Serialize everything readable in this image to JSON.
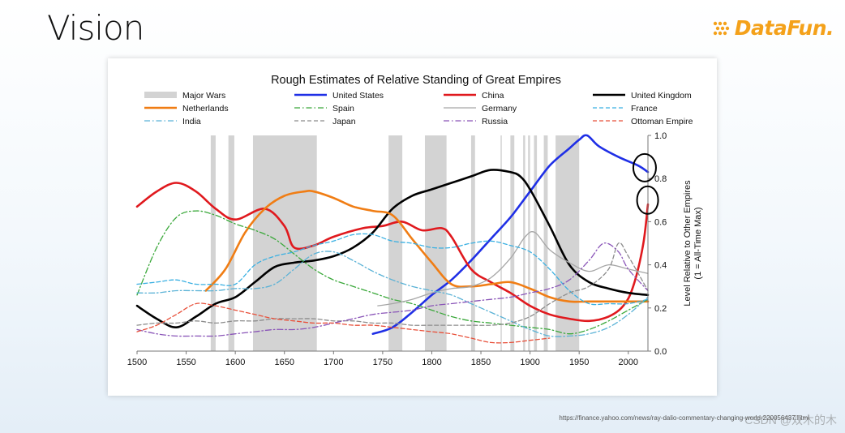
{
  "slide": {
    "title": "Vision",
    "source_url": "https://finance.yahoo.com/news/ray-dalio-commentary-changing-world-220056437.html",
    "watermark": "CSDN @双木的木"
  },
  "logo": {
    "text": "DataFun.",
    "color": "#f4a11a"
  },
  "chart_data": {
    "type": "line",
    "title": "Rough Estimates of Relative Standing of Great Empires",
    "xlabel": "",
    "ylabel": "Level Relative to Other Empires (1 = All-Time Max)",
    "xlim": [
      1500,
      2020
    ],
    "ylim": [
      0.0,
      1.0
    ],
    "x_ticks": [
      1500,
      1550,
      1600,
      1650,
      1700,
      1750,
      1800,
      1850,
      1900,
      1950,
      2000
    ],
    "y_ticks": [
      0.0,
      0.2,
      0.4,
      0.6,
      0.8,
      1.0
    ],
    "y_tick_labels": [
      "0.0",
      "0.2",
      "0.4",
      "0.6",
      "0.8",
      "1.0"
    ],
    "major_wars": [
      [
        1575,
        1580
      ],
      [
        1593,
        1599
      ],
      [
        1618,
        1683
      ],
      [
        1756,
        1770
      ],
      [
        1793,
        1815
      ],
      [
        1840,
        1844
      ],
      [
        1870,
        1871
      ],
      [
        1880,
        1884
      ],
      [
        1893,
        1895
      ],
      [
        1898,
        1900
      ],
      [
        1904,
        1907
      ],
      [
        1914,
        1918
      ],
      [
        1926,
        1950
      ]
    ],
    "legend": [
      {
        "name": "Major Wars",
        "color": "#d0d0d0",
        "style": "band"
      },
      {
        "name": "United States",
        "color": "#1f2fe6",
        "style": "solid"
      },
      {
        "name": "China",
        "color": "#e0191e",
        "style": "solid"
      },
      {
        "name": "United Kingdom",
        "color": "#000000",
        "style": "solid"
      },
      {
        "name": "Netherlands",
        "color": "#f07d14",
        "style": "solid"
      },
      {
        "name": "Spain",
        "color": "#3aa83a",
        "style": "dashdot"
      },
      {
        "name": "Germany",
        "color": "#a6a6a6",
        "style": "solid"
      },
      {
        "name": "France",
        "color": "#3ab0e2",
        "style": "dash"
      },
      {
        "name": "India",
        "color": "#5ab2d6",
        "style": "dashdot"
      },
      {
        "name": "Japan",
        "color": "#8c8c8c",
        "style": "dash"
      },
      {
        "name": "Russia",
        "color": "#8a55b8",
        "style": "dashdot"
      },
      {
        "name": "Ottoman Empire",
        "color": "#e8503a",
        "style": "dash"
      }
    ],
    "series": [
      {
        "name": "United States",
        "x": [
          1740,
          1760,
          1780,
          1800,
          1820,
          1840,
          1860,
          1880,
          1900,
          1920,
          1940,
          1950,
          1958,
          1970,
          1990,
          2010,
          2020
        ],
        "values": [
          0.08,
          0.11,
          0.18,
          0.26,
          0.33,
          0.42,
          0.52,
          0.62,
          0.74,
          0.86,
          0.94,
          0.98,
          1.0,
          0.95,
          0.9,
          0.86,
          0.83
        ]
      },
      {
        "name": "China",
        "x": [
          1500,
          1520,
          1540,
          1560,
          1580,
          1600,
          1630,
          1650,
          1660,
          1680,
          1700,
          1730,
          1750,
          1770,
          1790,
          1810,
          1820,
          1840,
          1860,
          1880,
          1900,
          1920,
          1940,
          1960,
          1980,
          1995,
          2005,
          2015,
          2020
        ],
        "values": [
          0.67,
          0.74,
          0.78,
          0.74,
          0.66,
          0.61,
          0.66,
          0.58,
          0.48,
          0.49,
          0.53,
          0.57,
          0.58,
          0.6,
          0.56,
          0.57,
          0.53,
          0.38,
          0.32,
          0.27,
          0.21,
          0.17,
          0.15,
          0.14,
          0.16,
          0.21,
          0.3,
          0.49,
          0.68
        ]
      },
      {
        "name": "United Kingdom",
        "x": [
          1500,
          1520,
          1540,
          1560,
          1580,
          1600,
          1620,
          1640,
          1660,
          1680,
          1700,
          1720,
          1740,
          1760,
          1780,
          1800,
          1820,
          1840,
          1860,
          1880,
          1890,
          1900,
          1920,
          1940,
          1960,
          1980,
          2000,
          2020
        ],
        "values": [
          0.21,
          0.15,
          0.11,
          0.16,
          0.22,
          0.25,
          0.32,
          0.39,
          0.41,
          0.42,
          0.44,
          0.48,
          0.55,
          0.66,
          0.72,
          0.75,
          0.78,
          0.81,
          0.84,
          0.83,
          0.81,
          0.75,
          0.58,
          0.4,
          0.32,
          0.29,
          0.27,
          0.26
        ]
      },
      {
        "name": "Netherlands",
        "x": [
          1570,
          1590,
          1610,
          1630,
          1650,
          1670,
          1680,
          1700,
          1720,
          1740,
          1760,
          1780,
          1800,
          1820,
          1840,
          1860,
          1880,
          1900,
          1920,
          1940,
          1960,
          1980,
          2000,
          2020
        ],
        "values": [
          0.28,
          0.38,
          0.55,
          0.66,
          0.72,
          0.74,
          0.74,
          0.71,
          0.67,
          0.65,
          0.63,
          0.52,
          0.41,
          0.31,
          0.3,
          0.31,
          0.32,
          0.29,
          0.25,
          0.23,
          0.23,
          0.23,
          0.23,
          0.23
        ]
      },
      {
        "name": "Spain",
        "x": [
          1500,
          1520,
          1540,
          1560,
          1580,
          1600,
          1620,
          1640,
          1660,
          1680,
          1700,
          1720,
          1740,
          1760,
          1780,
          1800,
          1820,
          1840,
          1860,
          1880,
          1900,
          1920,
          1940,
          1960,
          1980,
          2000,
          2020
        ],
        "values": [
          0.26,
          0.48,
          0.62,
          0.65,
          0.63,
          0.59,
          0.56,
          0.52,
          0.45,
          0.38,
          0.33,
          0.3,
          0.27,
          0.24,
          0.22,
          0.19,
          0.16,
          0.14,
          0.13,
          0.12,
          0.11,
          0.1,
          0.08,
          0.1,
          0.14,
          0.19,
          0.24
        ]
      },
      {
        "name": "Germany",
        "x": [
          1745,
          1760,
          1780,
          1800,
          1820,
          1840,
          1860,
          1880,
          1895,
          1905,
          1920,
          1940,
          1960,
          1980,
          2000,
          2020
        ],
        "values": [
          0.21,
          0.22,
          0.24,
          0.27,
          0.29,
          0.3,
          0.34,
          0.43,
          0.53,
          0.55,
          0.47,
          0.41,
          0.37,
          0.4,
          0.38,
          0.36
        ]
      },
      {
        "name": "France",
        "x": [
          1500,
          1520,
          1540,
          1560,
          1580,
          1600,
          1620,
          1640,
          1660,
          1680,
          1700,
          1720,
          1740,
          1760,
          1780,
          1800,
          1820,
          1840,
          1860,
          1880,
          1900,
          1920,
          1940,
          1960,
          1980,
          2000,
          2020
        ],
        "values": [
          0.31,
          0.32,
          0.33,
          0.31,
          0.31,
          0.31,
          0.4,
          0.44,
          0.46,
          0.49,
          0.51,
          0.54,
          0.54,
          0.51,
          0.5,
          0.48,
          0.48,
          0.5,
          0.51,
          0.49,
          0.46,
          0.38,
          0.28,
          0.22,
          0.22,
          0.22,
          0.24
        ]
      },
      {
        "name": "India",
        "x": [
          1500,
          1520,
          1540,
          1560,
          1580,
          1600,
          1620,
          1640,
          1660,
          1680,
          1700,
          1720,
          1740,
          1760,
          1780,
          1800,
          1820,
          1840,
          1860,
          1880,
          1900,
          1920,
          1940,
          1960,
          1980,
          2000,
          2020
        ],
        "values": [
          0.27,
          0.27,
          0.28,
          0.28,
          0.28,
          0.29,
          0.29,
          0.31,
          0.38,
          0.45,
          0.46,
          0.42,
          0.37,
          0.33,
          0.3,
          0.28,
          0.26,
          0.22,
          0.18,
          0.14,
          0.1,
          0.07,
          0.07,
          0.08,
          0.11,
          0.17,
          0.25
        ]
      },
      {
        "name": "Japan",
        "x": [
          1500,
          1520,
          1540,
          1560,
          1580,
          1600,
          1620,
          1640,
          1660,
          1680,
          1700,
          1720,
          1740,
          1760,
          1780,
          1800,
          1820,
          1840,
          1860,
          1880,
          1900,
          1920,
          1940,
          1960,
          1980,
          1990,
          2000,
          2020
        ],
        "values": [
          0.12,
          0.13,
          0.13,
          0.14,
          0.13,
          0.14,
          0.14,
          0.15,
          0.15,
          0.15,
          0.14,
          0.14,
          0.13,
          0.13,
          0.12,
          0.12,
          0.12,
          0.12,
          0.12,
          0.13,
          0.16,
          0.22,
          0.27,
          0.3,
          0.38,
          0.5,
          0.44,
          0.28
        ]
      },
      {
        "name": "Russia",
        "x": [
          1500,
          1520,
          1540,
          1560,
          1580,
          1600,
          1620,
          1640,
          1660,
          1680,
          1700,
          1720,
          1740,
          1760,
          1780,
          1800,
          1820,
          1840,
          1860,
          1880,
          1900,
          1920,
          1940,
          1960,
          1975,
          1990,
          2000,
          2020
        ],
        "values": [
          0.1,
          0.08,
          0.07,
          0.07,
          0.07,
          0.08,
          0.09,
          0.1,
          0.1,
          0.11,
          0.13,
          0.15,
          0.17,
          0.18,
          0.19,
          0.21,
          0.22,
          0.23,
          0.24,
          0.25,
          0.27,
          0.29,
          0.33,
          0.42,
          0.5,
          0.46,
          0.38,
          0.28
        ]
      },
      {
        "name": "Ottoman Empire",
        "x": [
          1500,
          1520,
          1540,
          1560,
          1580,
          1600,
          1620,
          1640,
          1660,
          1680,
          1700,
          1720,
          1740,
          1760,
          1780,
          1800,
          1820,
          1840,
          1860,
          1880,
          1900,
          1920
        ],
        "values": [
          0.09,
          0.12,
          0.17,
          0.22,
          0.21,
          0.19,
          0.17,
          0.15,
          0.14,
          0.13,
          0.13,
          0.12,
          0.12,
          0.11,
          0.1,
          0.09,
          0.08,
          0.06,
          0.04,
          0.04,
          0.05,
          0.06
        ]
      }
    ],
    "annotations": [
      "circle around United States 2015 value",
      "circle around China 2020 value"
    ]
  }
}
